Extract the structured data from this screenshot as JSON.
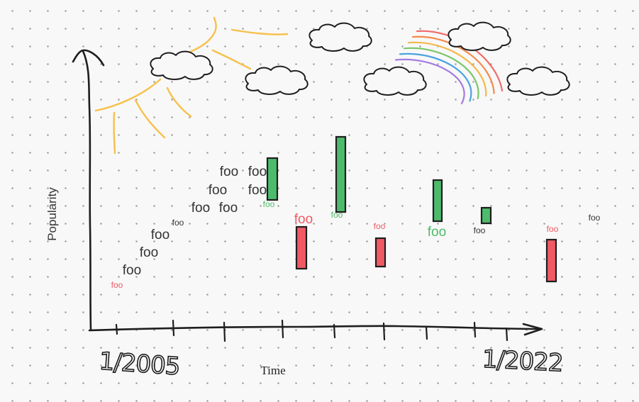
{
  "chart_data": {
    "type": "bar",
    "title": "",
    "xlabel": "Time",
    "ylabel": "Popularity",
    "x_tick_labels": [
      "1/2005",
      "1/2022"
    ],
    "colors": {
      "up": "#4dbb6c",
      "down": "#ef5a64",
      "neutral": "#333333",
      "sun": "#f7c04a",
      "axis": "#1e1e1e"
    },
    "foo_labels": [
      {
        "text": "foo",
        "color": "down",
        "size": 12
      },
      {
        "text": "foo",
        "color": "neutral",
        "size": 19
      },
      {
        "text": "foo",
        "color": "neutral",
        "size": 19
      },
      {
        "text": "foo",
        "color": "neutral",
        "size": 19
      },
      {
        "text": "foo",
        "color": "neutral",
        "size": 12
      },
      {
        "text": "foo",
        "color": "neutral",
        "size": 19
      },
      {
        "text": "foo",
        "color": "neutral",
        "size": 19
      },
      {
        "text": "foo",
        "color": "neutral",
        "size": 19
      },
      {
        "text": "foo",
        "color": "neutral",
        "size": 19
      },
      {
        "text": "foo",
        "color": "neutral",
        "size": 19
      },
      {
        "text": "foo",
        "color": "neutral",
        "size": 19
      },
      {
        "text": "foo",
        "color": "up",
        "size": 12
      },
      {
        "text": "foo",
        "color": "down",
        "size": 19
      },
      {
        "text": "foo",
        "color": "up",
        "size": 12
      },
      {
        "text": "foo",
        "color": "down",
        "size": 12
      },
      {
        "text": "foo",
        "color": "up",
        "size": 19
      },
      {
        "text": "foo",
        "color": "neutral",
        "size": 12
      },
      {
        "text": "foo",
        "color": "down",
        "size": 12
      },
      {
        "text": "foo",
        "color": "neutral",
        "size": 12
      }
    ],
    "candles": [
      {
        "color": "up"
      },
      {
        "color": "down"
      },
      {
        "color": "up"
      },
      {
        "color": "down"
      },
      {
        "color": "up"
      },
      {
        "color": "up"
      },
      {
        "color": "down"
      }
    ],
    "decorations": [
      "sun",
      "cloud",
      "cloud",
      "cloud",
      "cloud",
      "cloud",
      "rainbow"
    ]
  }
}
